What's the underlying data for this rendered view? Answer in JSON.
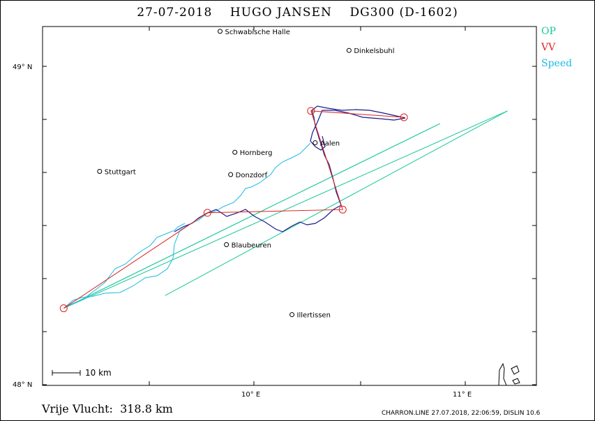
{
  "title": "27-07-2018    HUGO JANSEN    DG300 (D-1602)",
  "legend": [
    {
      "label": "OP",
      "color": "#19c79a"
    },
    {
      "label": "VV",
      "color": "#e0201c"
    },
    {
      "label": "Speed",
      "color": "#19b9e6"
    }
  ],
  "axes": {
    "lat_top": {
      "value": 49,
      "label": "49° N"
    },
    "lat_bottom": {
      "value": 48,
      "label": "48° N"
    },
    "lon_left_tick": {
      "value": 10,
      "label": "10° E"
    },
    "lon_right_tick": {
      "value": 11,
      "label": "11° E"
    }
  },
  "scale_bar": {
    "label": "10  km"
  },
  "towns": [
    {
      "name": "Schwäbische Halle",
      "label": "Schwabische Halle",
      "lon": 9.84,
      "lat": 49.11
    },
    {
      "name": "Dinkelsbühl",
      "label": "Dinkelsbuhl",
      "lon": 10.45,
      "lat": 49.05
    },
    {
      "name": "Hornberg",
      "label": "Hornberg",
      "lon": 9.91,
      "lat": 48.73
    },
    {
      "name": "Stuttgart",
      "label": "Stuttgart",
      "lon": 9.27,
      "lat": 48.67
    },
    {
      "name": "Donzdorf",
      "label": "Donzdorf",
      "lon": 9.89,
      "lat": 48.66
    },
    {
      "name": "Aalen",
      "label": "Aalen",
      "lon": 10.29,
      "lat": 48.76
    },
    {
      "name": "Blaubeuren",
      "label": "Blaubeuren",
      "lon": 9.87,
      "lat": 48.44
    },
    {
      "name": "Illertissen",
      "label": "Illertissen",
      "lon": 10.18,
      "lat": 48.22
    }
  ],
  "turnpoints_vv": [
    {
      "lon": 9.1,
      "lat": 48.24
    },
    {
      "lon": 9.78,
      "lat": 48.54
    },
    {
      "lon": 10.42,
      "lat": 48.55
    },
    {
      "lon": 10.27,
      "lat": 48.86
    },
    {
      "lon": 10.71,
      "lat": 48.84
    },
    {
      "lon": 10.27,
      "lat": 48.86
    }
  ],
  "op_lines": [
    [
      {
        "lon": 9.1,
        "lat": 48.24
      },
      {
        "lon": 10.88,
        "lat": 48.82
      }
    ],
    [
      {
        "lon": 10.88,
        "lat": 48.82
      },
      {
        "lon": 9.1,
        "lat": 48.24
      }
    ],
    [
      {
        "lon": 9.58,
        "lat": 48.28
      },
      {
        "lon": 11.2,
        "lat": 48.86
      }
    ],
    [
      {
        "lon": 11.2,
        "lat": 48.86
      },
      {
        "lon": 9.1,
        "lat": 48.24
      }
    ]
  ],
  "distance_text": "Vrije Vlucht:  318.8 km",
  "footer": "CHARRON.LINE 27.07.2018, 22:06:59, DISLIN 10.6"
}
